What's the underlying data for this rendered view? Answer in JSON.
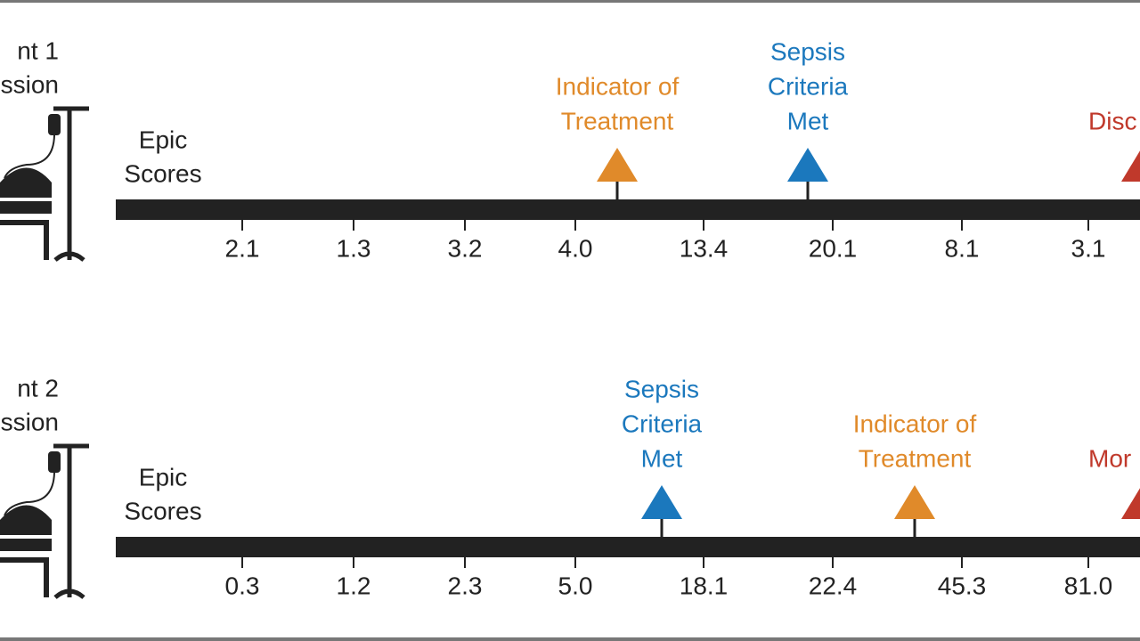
{
  "rows": [
    {
      "patient_label": [
        "nt 1",
        "ssion"
      ],
      "score_label": [
        "Epic",
        "Scores"
      ],
      "scores": [
        "2.1",
        "1.3",
        "3.2",
        "4.0",
        "13.4",
        "20.1",
        "8.1",
        "3.1"
      ],
      "events": [
        {
          "lines": [
            "Indicator of",
            "Treatment"
          ],
          "color": "#e08a2a"
        },
        {
          "lines": [
            "Sepsis",
            "Criteria",
            "Met"
          ],
          "color": "#1b78bd"
        },
        {
          "lines": [
            "Disc"
          ],
          "color": "#c0392b"
        }
      ]
    },
    {
      "patient_label": [
        "nt 2",
        "ssion"
      ],
      "score_label": [
        "Epic",
        "Scores"
      ],
      "scores": [
        "0.3",
        "1.2",
        "2.3",
        "5.0",
        "18.1",
        "22.4",
        "45.3",
        "81.0"
      ],
      "events": [
        {
          "lines": [
            "Sepsis",
            "Criteria",
            "Met"
          ],
          "color": "#1b78bd"
        },
        {
          "lines": [
            "Indicator of",
            "Treatment"
          ],
          "color": "#e08a2a"
        },
        {
          "lines": [
            "Mor"
          ],
          "color": "#c0392b"
        }
      ]
    }
  ]
}
